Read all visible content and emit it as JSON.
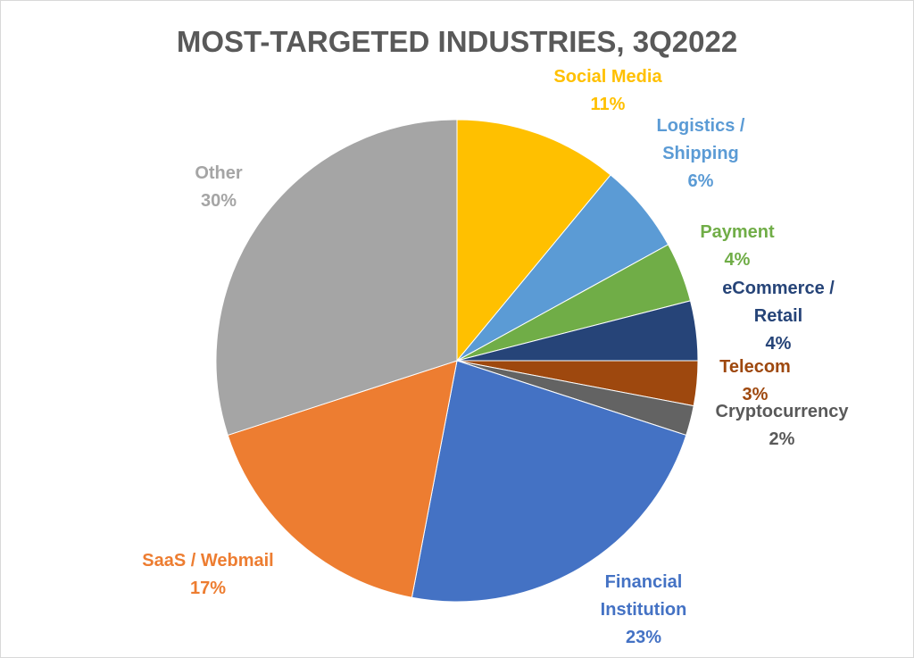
{
  "chart_data": {
    "type": "pie",
    "title": "MOST-TARGETED INDUSTRIES, 3Q2022",
    "title_color": "#595959",
    "start_angle_deg": 0,
    "direction": "clockwise",
    "slices": [
      {
        "key": "social-media",
        "label_lines": [
          "Social Media"
        ],
        "value": 11,
        "value_label": "11%",
        "color": "#FFC000",
        "label_color": "#FFC000"
      },
      {
        "key": "logistics",
        "label_lines": [
          "Logistics /",
          "Shipping"
        ],
        "value": 6,
        "value_label": "6%",
        "color": "#5B9BD5",
        "label_color": "#5B9BD5"
      },
      {
        "key": "payment",
        "label_lines": [
          "Payment"
        ],
        "value": 4,
        "value_label": "4%",
        "color": "#70AD47",
        "label_color": "#70AD47"
      },
      {
        "key": "ecommerce",
        "label_lines": [
          "eCommerce /",
          "Retail"
        ],
        "value": 4,
        "value_label": "4%",
        "color": "#264478",
        "label_color": "#264478"
      },
      {
        "key": "telecom",
        "label_lines": [
          "Telecom"
        ],
        "value": 3,
        "value_label": "3%",
        "color": "#9E480E",
        "label_color": "#9E480E"
      },
      {
        "key": "cryptocurrency",
        "label_lines": [
          "Cryptocurrency"
        ],
        "value": 2,
        "value_label": "2%",
        "color": "#636363",
        "label_color": "#595959"
      },
      {
        "key": "financial",
        "label_lines": [
          "Financial",
          "Institution"
        ],
        "value": 23,
        "value_label": "23%",
        "color": "#4472C4",
        "label_color": "#4472C4"
      },
      {
        "key": "saas",
        "label_lines": [
          "SaaS / Webmail"
        ],
        "value": 17,
        "value_label": "17%",
        "color": "#ED7D31",
        "label_color": "#ED7D31"
      },
      {
        "key": "other",
        "label_lines": [
          "Other"
        ],
        "value": 30,
        "value_label": "30%",
        "color": "#A5A5A5",
        "label_color": "#A5A5A5"
      }
    ]
  }
}
